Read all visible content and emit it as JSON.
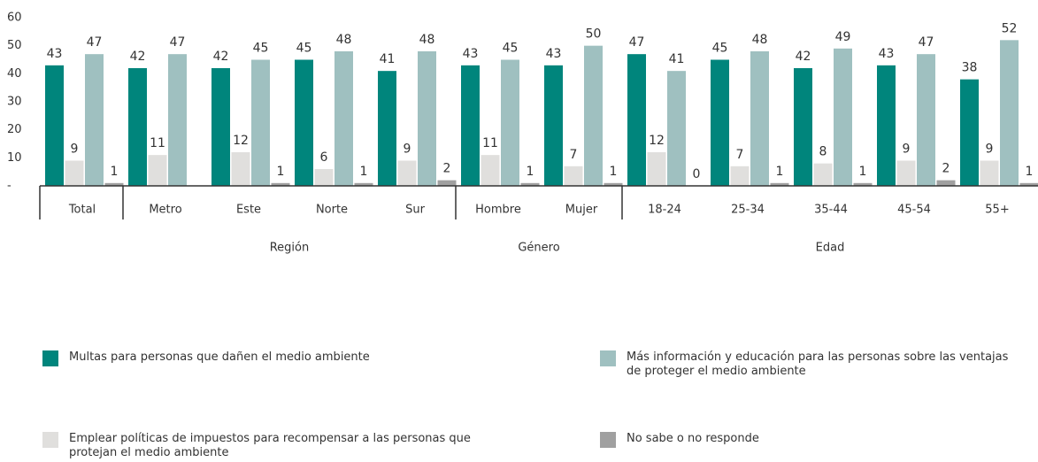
{
  "chart_data": {
    "type": "bar",
    "categories": [
      "Total",
      "Metro",
      "Este",
      "Norte",
      "Sur",
      "Hombre",
      "Mujer",
      "18-24",
      "25-34",
      "35-44",
      "45-54",
      "55+"
    ],
    "groups": [
      "Región",
      "Género",
      "Edad"
    ],
    "series": [
      {
        "name": "Multas para personas que dañen el medio ambiente",
        "color": "#00857c",
        "values": [
          43,
          42,
          42,
          45,
          41,
          43,
          43,
          47,
          45,
          42,
          43,
          38
        ]
      },
      {
        "name": "Emplear políticas de impuestos para recompensar a las personas que protejan el medio ambiente",
        "color": "#e0dfdd",
        "values": [
          9,
          11,
          12,
          6,
          9,
          11,
          7,
          12,
          7,
          8,
          9,
          9
        ]
      },
      {
        "name": "Más información y educación para las personas sobre las ventajas de proteger el medio ambiente",
        "color": "#9fc0c0",
        "values": [
          47,
          47,
          45,
          48,
          48,
          45,
          50,
          41,
          48,
          49,
          47,
          52
        ]
      },
      {
        "name": "No sabe o no responde",
        "color": "#a0a0a0",
        "values": [
          1,
          null,
          1,
          1,
          2,
          1,
          1,
          0,
          1,
          1,
          2,
          1
        ]
      }
    ],
    "ylim": [
      0,
      60
    ],
    "yticks": [
      {
        "value": 0,
        "label": "-"
      },
      10,
      20,
      30,
      40,
      50,
      60
    ]
  }
}
